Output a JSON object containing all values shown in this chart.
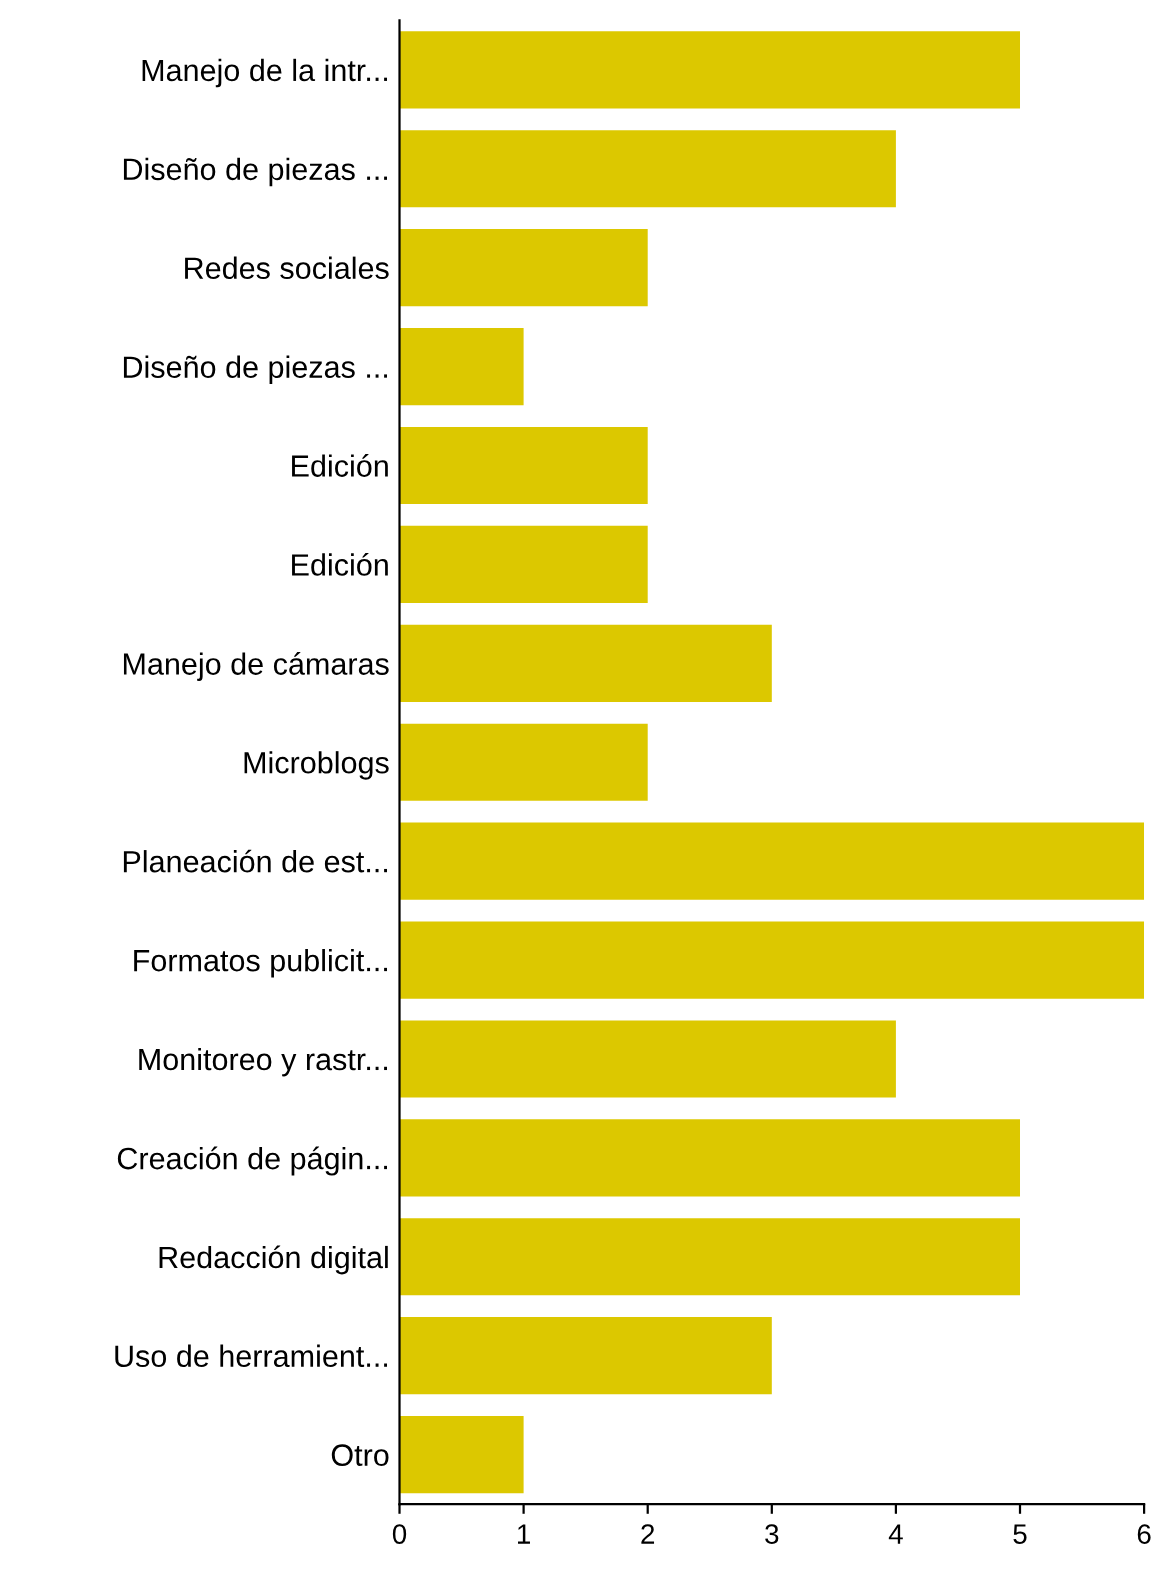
{
  "chart_data": {
    "type": "bar",
    "orientation": "horizontal",
    "categories": [
      "Manejo de la intr...",
      "Diseño de piezas ...",
      "Redes sociales",
      "Diseño de piezas ...",
      "Edición",
      "Edición",
      "Manejo de cámaras",
      "Microblogs",
      "Planeación de est...",
      "Formatos publicit...",
      "Monitoreo y rastr...",
      "Creación de págin...",
      "Redacción digital",
      "Uso de herramient...",
      "Otro"
    ],
    "values": [
      5,
      4,
      2,
      1,
      2,
      2,
      3,
      2,
      6,
      6,
      4,
      5,
      5,
      3,
      1
    ],
    "color": "#dcc800",
    "xlim": [
      0,
      6
    ],
    "xticks": [
      0,
      1,
      2,
      3,
      4,
      5,
      6
    ],
    "grid": false,
    "legend": false
  }
}
